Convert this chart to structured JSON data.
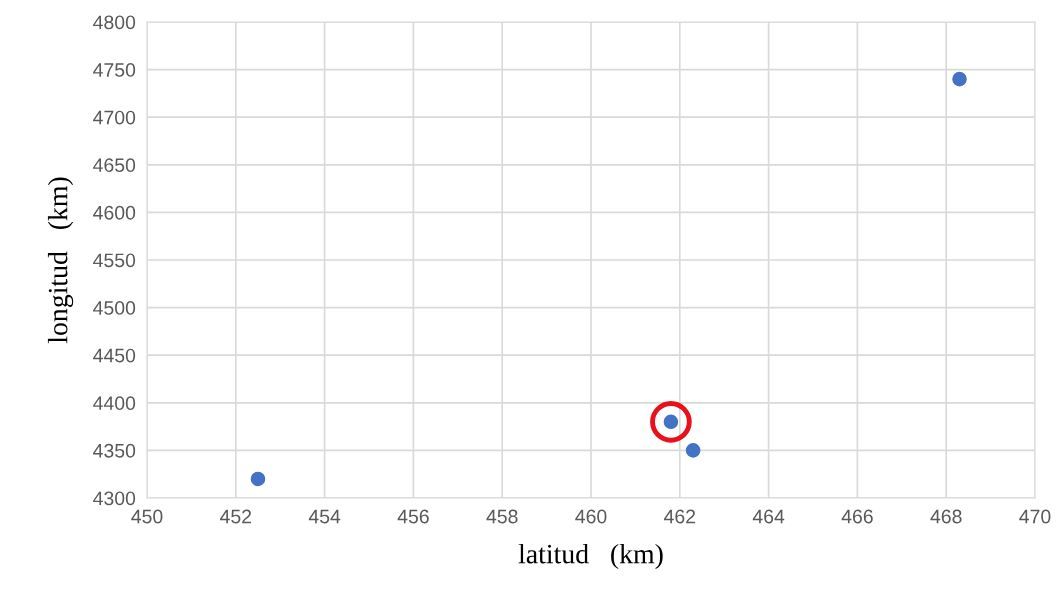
{
  "chart_data": {
    "type": "scatter",
    "xlabel": "latitud   (km)",
    "ylabel": "longitud   (km)",
    "x": [
      452.5,
      461.8,
      462.3,
      468.3
    ],
    "series": [
      {
        "color": "#4472c4",
        "values": [
          4320,
          4380,
          4350,
          4740
        ],
        "marker": "circle"
      },
      {
        "color": "#e8101a",
        "x": [
          461.8
        ],
        "values": [
          4380
        ],
        "marker": "circle"
      }
    ],
    "xlim": [
      450,
      470
    ],
    "xticks": [
      450,
      452,
      454,
      456,
      458,
      460,
      462,
      464,
      466,
      468,
      470
    ],
    "ylim": [
      4300,
      4800
    ],
    "yticks": [
      4300,
      4350,
      4400,
      4450,
      4500,
      4550,
      4600,
      4650,
      4700,
      4750,
      4800
    ],
    "grid": true,
    "legend": false
  }
}
